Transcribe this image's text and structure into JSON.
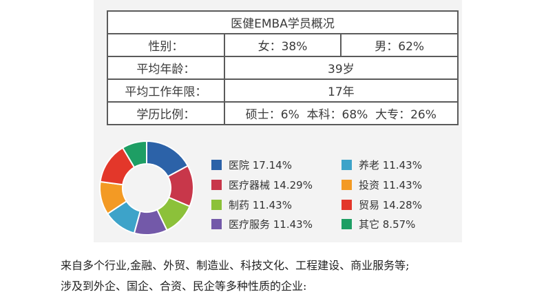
{
  "table": {
    "title": "医健EMBA学员概况",
    "gender_label": "性别：",
    "female": "女：38%",
    "male": "男：62%",
    "age_label": "平均年龄：",
    "age_value": "39岁",
    "work_label": "平均工作年限：",
    "work_value": "17年",
    "edu_label": "学历比例：",
    "edu_value": "硕士：6%  本科：68%  大专：26%"
  },
  "chart_data": {
    "type": "pie",
    "donut": true,
    "title": "",
    "categories": [
      "医院",
      "医疗器械",
      "制药",
      "医疗服务",
      "养老",
      "投资",
      "贸易",
      "其它"
    ],
    "values": [
      17.14,
      14.29,
      11.43,
      11.43,
      11.43,
      11.43,
      14.28,
      8.57
    ],
    "colors": [
      "#2c62a8",
      "#c8374a",
      "#8cc13a",
      "#7359a9",
      "#3da3c9",
      "#f39a24",
      "#e3372a",
      "#1e9e64"
    ],
    "legend": {
      "placement": "right",
      "labels": [
        "医院 17.14%",
        "医疗器械 14.29%",
        "制药 11.43%",
        "医疗服务 11.43%",
        "养老 11.43%",
        "投资 11.43%",
        "贸易 14.28%",
        "其它 8.57%"
      ]
    }
  },
  "text": {
    "line1": "来自多个行业,金融、外贸、制造业、科技文化、工程建设、商业服务等;",
    "line2": "涉及到外企、国企、合资、民企等多种性质的企业:"
  }
}
